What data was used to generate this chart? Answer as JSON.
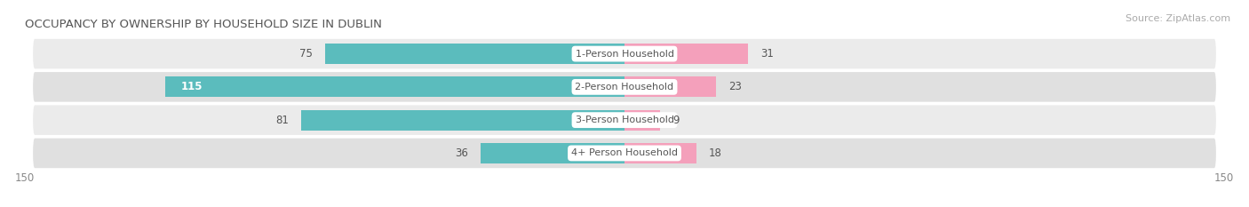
{
  "title": "OCCUPANCY BY OWNERSHIP BY HOUSEHOLD SIZE IN DUBLIN",
  "source": "Source: ZipAtlas.com",
  "categories": [
    "1-Person Household",
    "2-Person Household",
    "3-Person Household",
    "4+ Person Household"
  ],
  "owner_values": [
    75,
    115,
    81,
    36
  ],
  "renter_values": [
    31,
    23,
    9,
    18
  ],
  "owner_color": "#5bbcbd",
  "renter_color": "#f4a0bb",
  "row_bg_color_odd": "#ebebeb",
  "row_bg_color_even": "#e0e0e0",
  "axis_max": 150,
  "label_bg_color": "#ffffff",
  "title_fontsize": 9.5,
  "source_fontsize": 8,
  "tick_fontsize": 8.5,
  "bar_label_fontsize": 8.5,
  "cat_label_fontsize": 8,
  "legend_fontsize": 8.5
}
